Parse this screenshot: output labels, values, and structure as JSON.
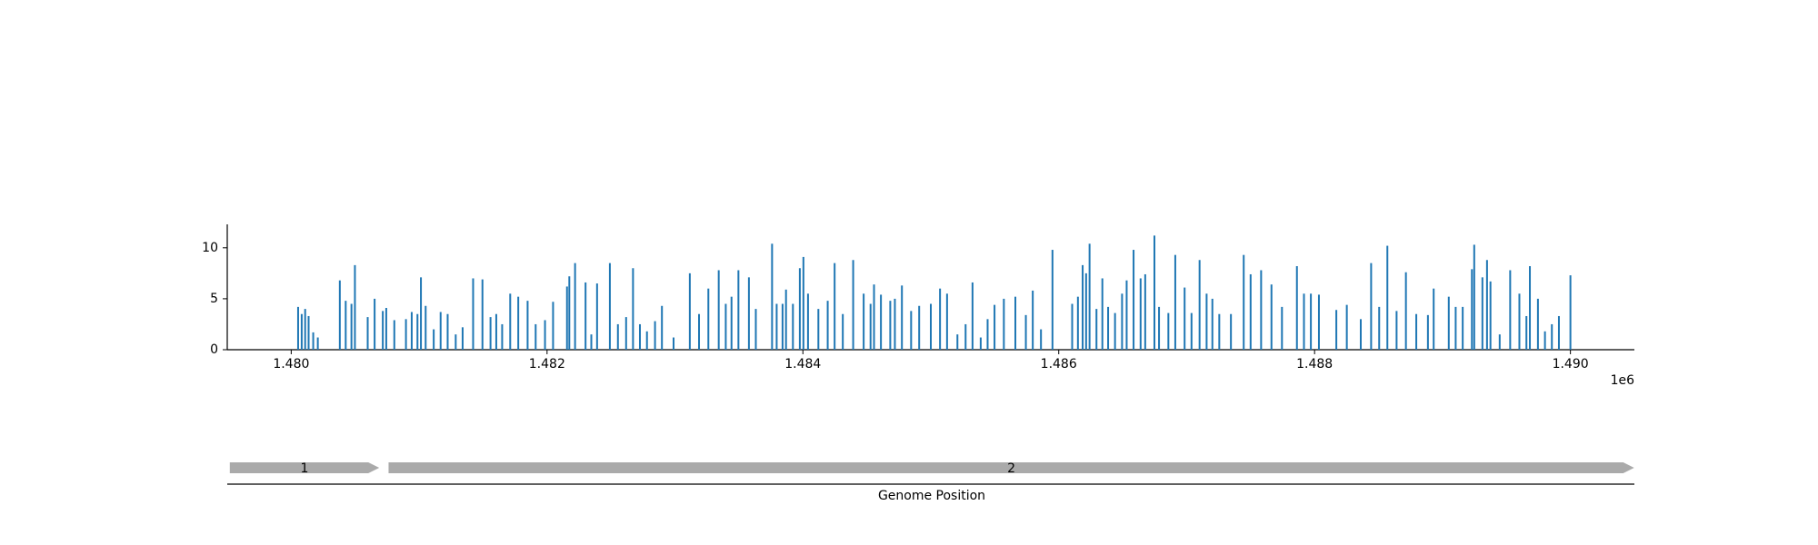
{
  "chart_data": {
    "type": "bar",
    "color": "#1f77b4",
    "xlabel": "Genome Position",
    "offset_label": "1e6",
    "xlim": [
      1479500,
      1490500
    ],
    "ylim": [
      0,
      12.3
    ],
    "xticks": [
      {
        "value": 1480000,
        "label": "1.480"
      },
      {
        "value": 1482000,
        "label": "1.482"
      },
      {
        "value": 1484000,
        "label": "1.484"
      },
      {
        "value": 1486000,
        "label": "1.486"
      },
      {
        "value": 1488000,
        "label": "1.488"
      },
      {
        "value": 1490000,
        "label": "1.490"
      }
    ],
    "yticks": [
      0,
      5,
      10
    ],
    "x": [
      1480054,
      1480082,
      1480109,
      1480136,
      1480172,
      1480208,
      1480380,
      1480426,
      1480471,
      1480498,
      1480598,
      1480652,
      1480716,
      1480743,
      1480806,
      1480897,
      1480942,
      1480987,
      1481014,
      1481051,
      1481114,
      1481168,
      1481223,
      1481286,
      1481340,
      1481422,
      1481495,
      1481558,
      1481603,
      1481649,
      1481712,
      1481775,
      1481848,
      1481911,
      1481984,
      1482047,
      1482156,
      1482174,
      1482219,
      1482301,
      1482346,
      1482391,
      1482491,
      1482554,
      1482618,
      1482672,
      1482726,
      1482781,
      1482844,
      1482898,
      1482989,
      1483116,
      1483188,
      1483261,
      1483342,
      1483397,
      1483442,
      1483496,
      1483578,
      1483632,
      1483759,
      1483795,
      1483841,
      1483868,
      1483922,
      1483976,
      1484004,
      1484040,
      1484121,
      1484194,
      1484248,
      1484312,
      1484393,
      1484475,
      1484529,
      1484556,
      1484610,
      1484683,
      1484719,
      1484774,
      1484846,
      1484909,
      1485000,
      1485072,
      1485127,
      1485208,
      1485272,
      1485326,
      1485390,
      1485444,
      1485498,
      1485571,
      1485661,
      1485743,
      1485797,
      1485861,
      1485951,
      1486105,
      1486150,
      1486187,
      1486214,
      1486241,
      1486295,
      1486341,
      1486386,
      1486440,
      1486495,
      1486531,
      1486585,
      1486640,
      1486676,
      1486748,
      1486784,
      1486857,
      1486911,
      1486984,
      1487038,
      1487101,
      1487156,
      1487201,
      1487255,
      1487346,
      1487446,
      1487500,
      1487582,
      1487663,
      1487745,
      1487862,
      1487917,
      1487971,
      1488034,
      1488170,
      1488252,
      1488361,
      1488442,
      1488505,
      1488569,
      1488641,
      1488714,
      1488795,
      1488886,
      1488931,
      1489049,
      1489103,
      1489158,
      1489230,
      1489248,
      1489312,
      1489348,
      1489375,
      1489447,
      1489529,
      1489601,
      1489656,
      1489683,
      1489746,
      1489801,
      1489855,
      1489910,
      1490000
    ],
    "values": [
      4.2,
      3.5,
      4.0,
      3.3,
      1.7,
      1.2,
      6.8,
      4.8,
      4.5,
      8.3,
      3.2,
      5.0,
      3.8,
      4.1,
      2.9,
      3.0,
      3.7,
      3.5,
      7.1,
      4.3,
      2.0,
      3.7,
      3.5,
      1.5,
      2.2,
      7.0,
      6.9,
      3.2,
      3.5,
      2.5,
      5.5,
      5.2,
      4.8,
      2.5,
      2.9,
      4.7,
      6.2,
      7.2,
      8.5,
      6.6,
      1.5,
      6.5,
      8.5,
      2.5,
      3.2,
      8.0,
      2.5,
      1.8,
      2.8,
      4.3,
      1.2,
      7.5,
      3.5,
      6.0,
      7.8,
      4.5,
      5.2,
      7.8,
      7.1,
      4.0,
      10.4,
      4.5,
      4.5,
      5.9,
      4.5,
      8.0,
      9.1,
      5.5,
      4.0,
      4.8,
      8.5,
      3.5,
      8.8,
      5.5,
      4.5,
      6.4,
      5.4,
      4.8,
      5.0,
      6.3,
      3.8,
      4.3,
      4.5,
      6.0,
      5.5,
      1.5,
      2.5,
      6.6,
      1.2,
      3.0,
      4.4,
      5.0,
      5.2,
      3.4,
      5.8,
      2.0,
      9.8,
      4.5,
      5.2,
      8.3,
      7.5,
      10.4,
      4.0,
      7.0,
      4.2,
      3.6,
      5.5,
      6.8,
      9.8,
      7.0,
      7.4,
      11.2,
      4.2,
      3.6,
      9.3,
      6.1,
      3.6,
      8.8,
      5.5,
      5.0,
      3.5,
      3.5,
      9.3,
      7.4,
      7.8,
      6.4,
      4.2,
      8.2,
      5.5,
      5.5,
      5.4,
      3.9,
      4.4,
      3.0,
      8.5,
      4.2,
      10.2,
      3.8,
      7.6,
      3.5,
      3.4,
      6.0,
      5.2,
      4.2,
      4.2,
      7.9,
      10.3,
      7.1,
      8.8,
      6.7,
      1.5,
      7.8,
      5.5,
      3.3,
      8.2,
      5.0,
      1.8,
      2.5,
      3.3,
      7.3
    ],
    "genes": [
      {
        "label": "1",
        "start": 1479520,
        "end": 1480688,
        "color": "#aaaaaa"
      },
      {
        "label": "2",
        "start": 1480761,
        "end": 1490498,
        "color": "#aaaaaa"
      }
    ]
  }
}
